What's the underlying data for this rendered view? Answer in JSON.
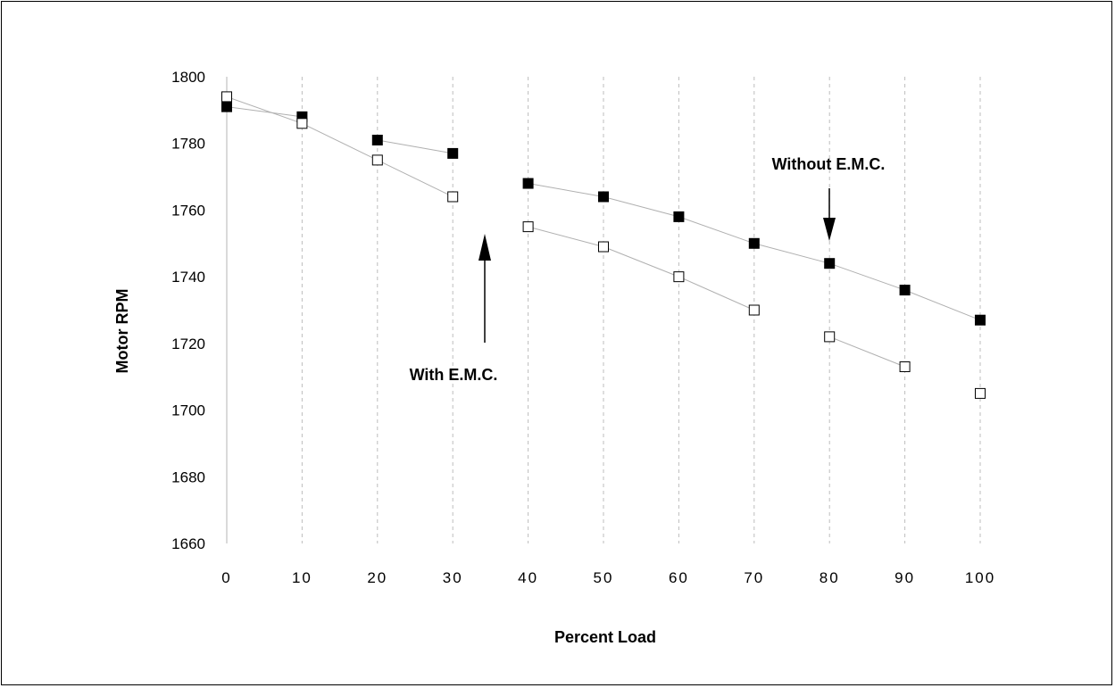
{
  "chart_data": {
    "type": "scatter",
    "title": "",
    "xlabel": "Percent Load",
    "ylabel": "Motor RPM",
    "xlim": [
      0,
      100
    ],
    "ylim": [
      1660,
      1800
    ],
    "xticks": [
      "0",
      "10",
      "20",
      "30",
      "40",
      "50",
      "60",
      "70",
      "80",
      "90",
      "100"
    ],
    "yticks": [
      "1660",
      "1680",
      "1700",
      "1720",
      "1740",
      "1760",
      "1780",
      "1800"
    ],
    "grid": "vertical dashed",
    "series": [
      {
        "marker": "filled-square",
        "x": [
          0,
          10,
          20,
          30,
          40,
          50,
          60,
          70,
          80,
          90,
          100
        ],
        "y": [
          1791,
          1788,
          1781,
          1777,
          1768,
          1764,
          1758,
          1750,
          1744,
          1736,
          1727
        ]
      },
      {
        "marker": "open-square",
        "x": [
          0,
          10,
          20,
          30,
          40,
          50,
          60,
          70,
          80,
          90,
          100
        ],
        "y": [
          1794,
          1786,
          1775,
          1764,
          1755,
          1749,
          1740,
          1730,
          1722,
          1713,
          1705
        ]
      }
    ],
    "annotations": [
      {
        "text": "Without E.M.C.",
        "arrow": "down",
        "target_x": 80
      },
      {
        "text": "With E.M.C.",
        "arrow": "up",
        "target_x": 34
      }
    ]
  }
}
